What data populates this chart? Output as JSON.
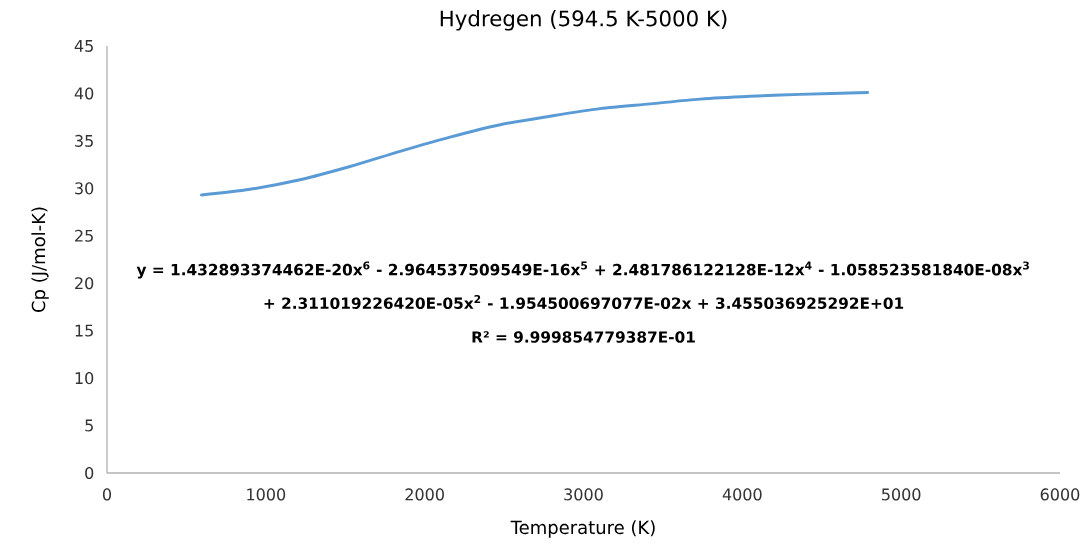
{
  "chart_data": {
    "type": "line",
    "title": "Hydregen (594.5 K-5000 K)",
    "xlabel": "Temperature (K)",
    "ylabel": "Cp (J/mol-K)",
    "x": [
      594.5,
      900,
      1215,
      1530,
      1845,
      2160,
      2475,
      2790,
      3105,
      3420,
      3734,
      4049,
      4364,
      4789
    ],
    "series": [
      {
        "color": "#5b9bd5",
        "values": [
          29.3,
          29.9,
          30.9,
          32.3,
          33.9,
          35.4,
          36.7,
          37.6,
          38.4,
          38.9,
          39.4,
          39.7,
          39.9,
          40.1
        ]
      }
    ],
    "xlim": [
      0,
      6000
    ],
    "xticks": [
      0,
      1000,
      2000,
      3000,
      4000,
      5000,
      6000
    ],
    "ylim": [
      0,
      45
    ],
    "yticks": [
      0,
      5,
      10,
      15,
      20,
      25,
      30,
      35,
      40,
      45
    ],
    "grid": false,
    "marker": "none",
    "line_style": "solid",
    "annotations": [
      {
        "text": "y = 1.432893374462E-20x$^{6}$ - 2.964537509549E-16x$^{5}$ + 2.481786122128E-12x$^{4}$ - 1.058523581840E-08x$^{3}$"
      },
      {
        "text": "+ 2.311019226420E-05x$^{2}$ - 1.954500697077E-02x + 3.455036925292E+01"
      },
      {
        "text": "R² = 9.999854779387E-01"
      }
    ]
  }
}
